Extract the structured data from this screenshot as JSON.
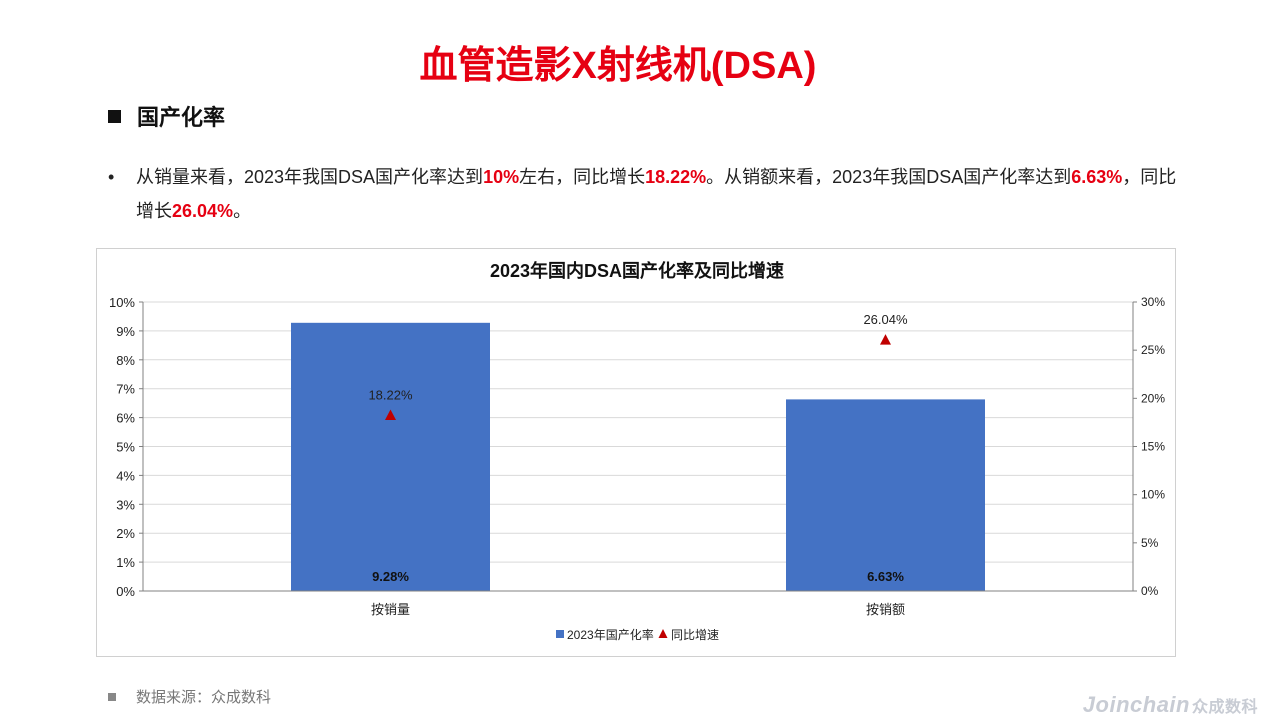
{
  "header": {
    "title": "血管造影X射线机(DSA)"
  },
  "section": {
    "title": "国产化率"
  },
  "paragraph": {
    "bullet": "•",
    "parts": [
      "从销量来看，2023年我国DSA国产化率达到",
      "10%",
      "左右，同比增长",
      "18.22%",
      "。从销额来看，2023年我国DSA国产化率达到",
      "6.63%",
      "，同比增长",
      "26.04%",
      "。"
    ]
  },
  "chart_data": {
    "type": "bar",
    "title": "2023年国内DSA国产化率及同比增速",
    "categories": [
      "按销量",
      "按销额"
    ],
    "series": [
      {
        "name": "2023年国产化率",
        "type": "bar",
        "axis": "left",
        "values": [
          9.28,
          6.63
        ],
        "labels": [
          "9.28%",
          "6.63%"
        ],
        "color": "#4472c4"
      },
      {
        "name": "同比增速",
        "type": "scatter",
        "marker": "triangle",
        "axis": "right",
        "values": [
          18.22,
          26.04
        ],
        "labels": [
          "18.22%",
          "26.04%"
        ],
        "color": "#c00000"
      }
    ],
    "ylim_left": [
      0,
      10
    ],
    "yticks_left": [
      "0%",
      "1%",
      "2%",
      "3%",
      "4%",
      "5%",
      "6%",
      "7%",
      "8%",
      "9%",
      "10%"
    ],
    "ylim_right": [
      0,
      30
    ],
    "yticks_right": [
      "0%",
      "5%",
      "10%",
      "15%",
      "20%",
      "25%",
      "30%"
    ],
    "grid": true,
    "legend": "bottom"
  },
  "footer": {
    "source": "数据来源：众成数科"
  },
  "watermark": {
    "brand": "Joinchain",
    "cn": "众成数科"
  }
}
